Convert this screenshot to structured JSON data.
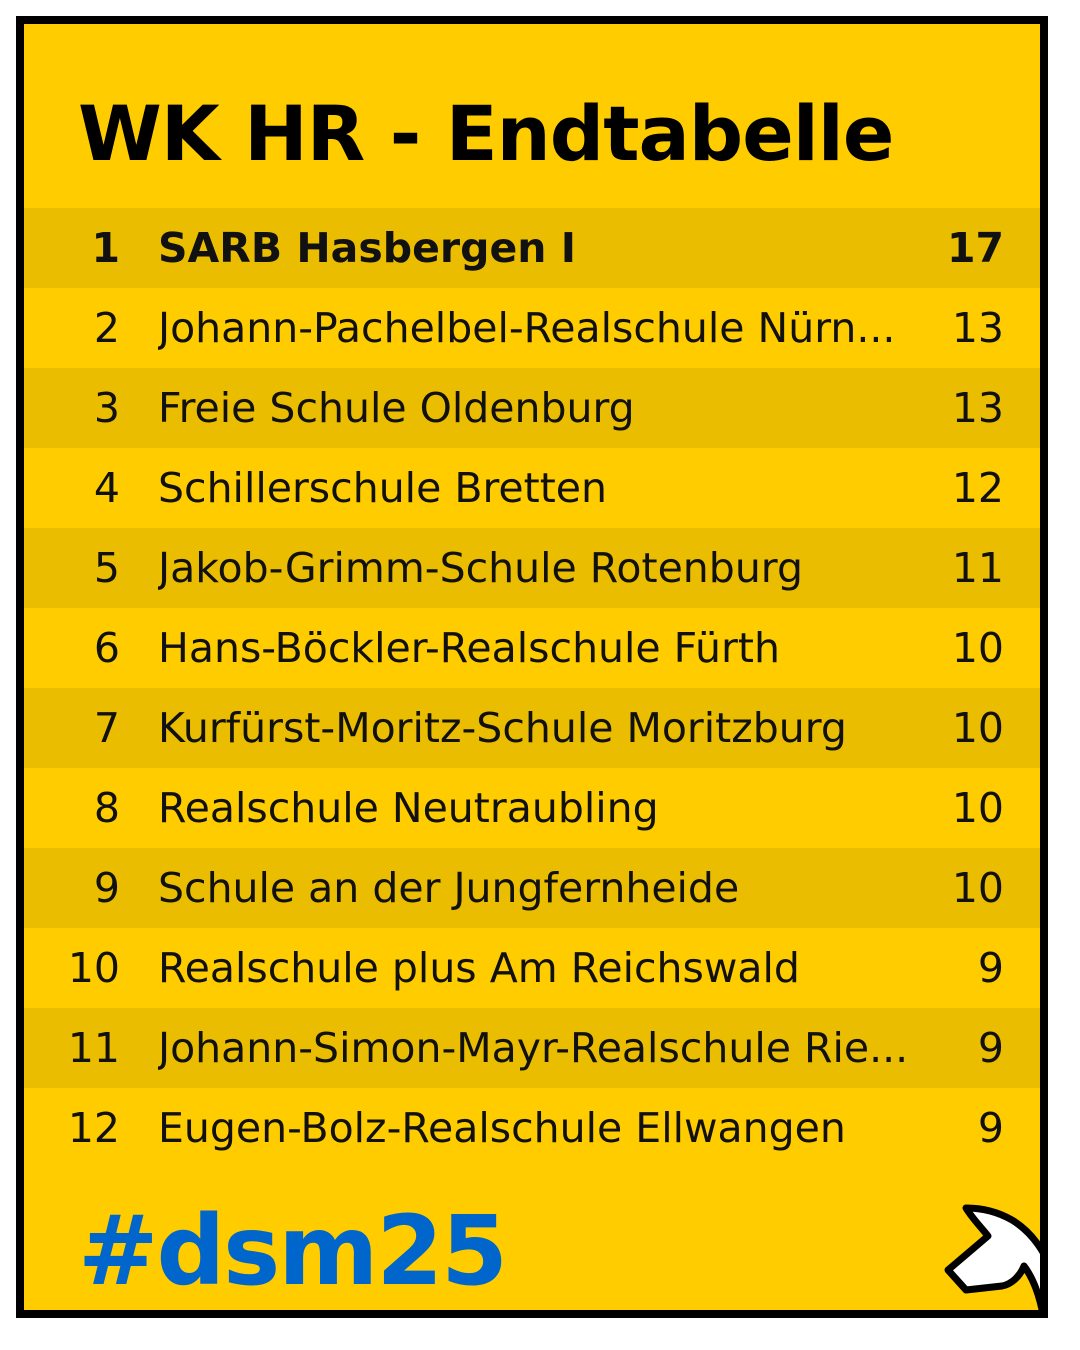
{
  "title": "WK HR - Endtabelle",
  "rows": [
    {
      "rank": "1",
      "name": "SARB Hasbergen I",
      "points": "17"
    },
    {
      "rank": "2",
      "name": "Johann-Pachelbel-Realschule Nürn...",
      "points": "13"
    },
    {
      "rank": "3",
      "name": "Freie Schule Oldenburg",
      "points": "13"
    },
    {
      "rank": "4",
      "name": "Schillerschule Bretten",
      "points": "12"
    },
    {
      "rank": "5",
      "name": "Jakob-Grimm-Schule Rotenburg",
      "points": "11"
    },
    {
      "rank": "6",
      "name": "Hans-Böckler-Realschule Fürth",
      "points": "10"
    },
    {
      "rank": "7",
      "name": "Kurfürst-Moritz-Schule Moritzburg",
      "points": "10"
    },
    {
      "rank": "8",
      "name": "Realschule Neutraubling",
      "points": "10"
    },
    {
      "rank": "9",
      "name": "Schule an der Jungfernheide",
      "points": "10"
    },
    {
      "rank": "10",
      "name": "Realschule plus Am Reichswald",
      "points": "9"
    },
    {
      "rank": "11",
      "name": "Johann-Simon-Mayr-Realschule Rie...",
      "points": "9"
    },
    {
      "rank": "12",
      "name": "Eugen-Bolz-Realschule Ellwangen",
      "points": "9"
    }
  ],
  "hashtag": "#dsm25",
  "logo_icon": "chess-knight-icon",
  "colors": {
    "background": "#FFCC00",
    "row_alt": "#EBBD00",
    "border": "#000000",
    "hashtag": "#0066CC"
  }
}
